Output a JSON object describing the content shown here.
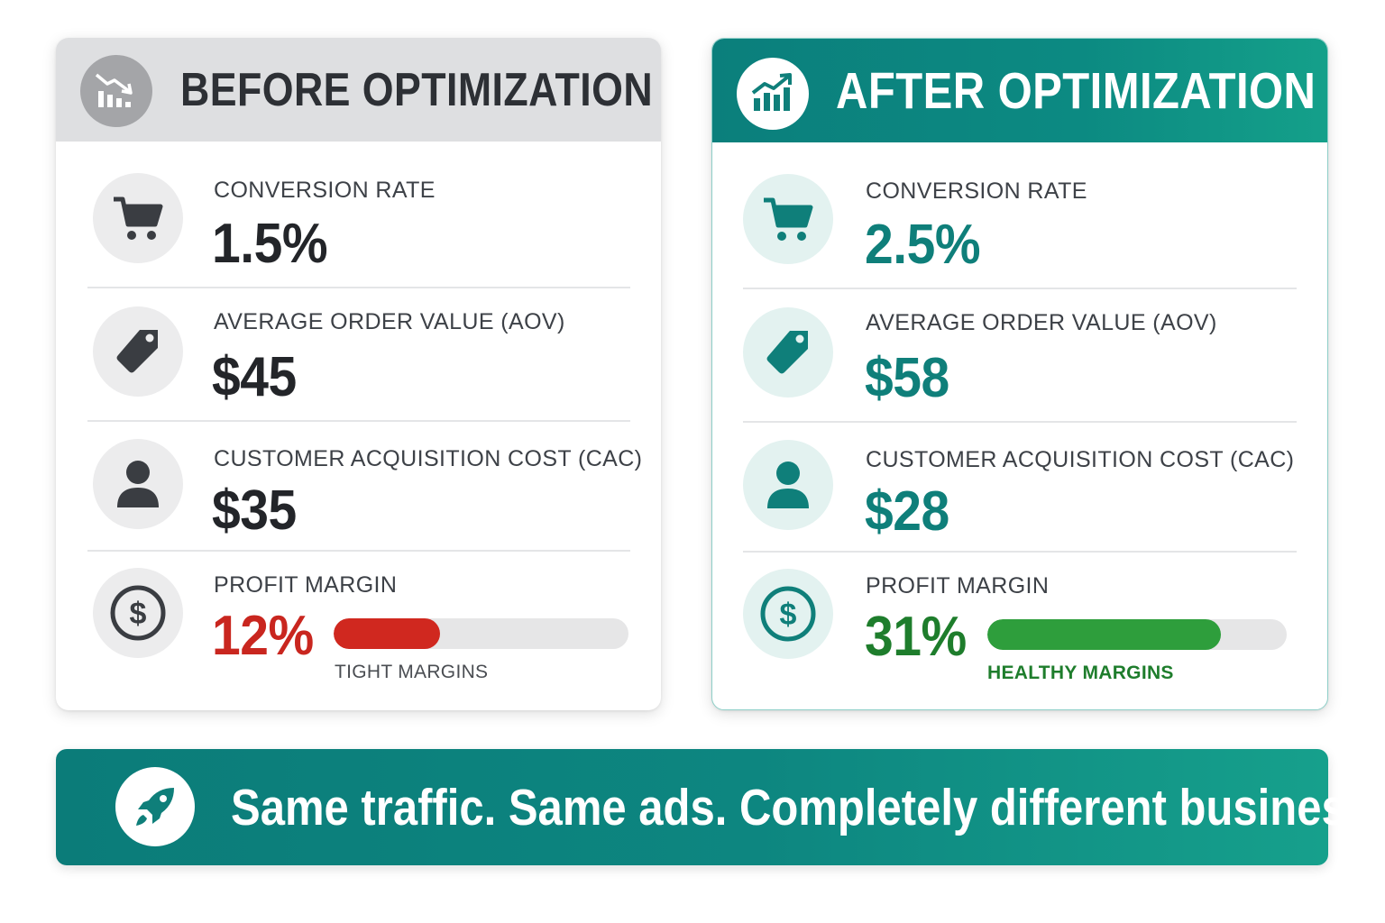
{
  "colors": {
    "teal": "#0f7f7a",
    "before_header": "#dedfe1",
    "red": "#c9261f",
    "green": "#2e9e3c"
  },
  "before": {
    "title": "BEFORE OPTIMIZATION",
    "header_icon": "trending-down-chart-icon",
    "metrics": [
      {
        "icon": "shopping-cart-icon",
        "label": "CONVERSION RATE",
        "value": "1.5%"
      },
      {
        "icon": "price-tag-icon",
        "label": "AVERAGE ORDER VALUE (AOV)",
        "value": "$45"
      },
      {
        "icon": "user-icon",
        "label": "CUSTOMER ACQUISITION COST (CAC)",
        "value": "$35"
      },
      {
        "icon": "dollar-circle-icon",
        "label": "PROFIT MARGIN",
        "value": "12%",
        "bar_fill_fraction": 0.36,
        "note": "TIGHT MARGINS"
      }
    ]
  },
  "after": {
    "title": "AFTER OPTIMIZATION",
    "header_icon": "trending-up-chart-icon",
    "metrics": [
      {
        "icon": "shopping-cart-icon",
        "label": "CONVERSION RATE",
        "value": "2.5%"
      },
      {
        "icon": "price-tag-icon",
        "label": "AVERAGE ORDER VALUE (AOV)",
        "value": "$58"
      },
      {
        "icon": "user-icon",
        "label": "CUSTOMER ACQUISITION COST (CAC)",
        "value": "$28"
      },
      {
        "icon": "dollar-circle-icon",
        "label": "PROFIT MARGIN",
        "value": "31%",
        "bar_fill_fraction": 0.78,
        "note": "HEALTHY MARGINS"
      }
    ]
  },
  "banner": {
    "icon": "rocket-icon",
    "text": "Same traffic. Same ads. Completely different business."
  }
}
